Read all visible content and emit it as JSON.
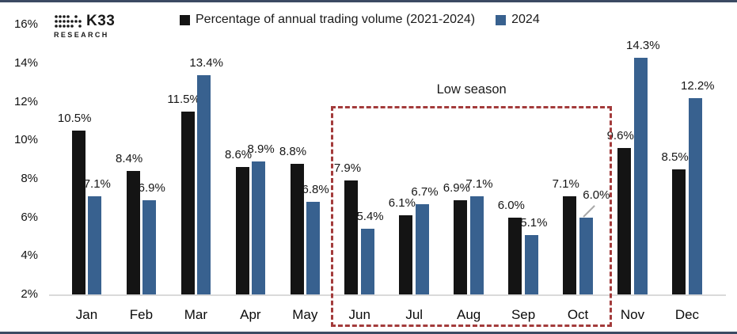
{
  "brand": {
    "name": "K33",
    "sub": "RESEARCH"
  },
  "legend": {
    "items": [
      {
        "label": "Percentage of annual trading volume (2021-2024)",
        "color": "#141414"
      },
      {
        "label": "2024",
        "color": "#38618F"
      }
    ]
  },
  "annotation": {
    "label": "Low season",
    "from": "Jun",
    "to": "Oct",
    "box_color": "#A33B3B"
  },
  "chart_data": {
    "type": "bar",
    "title": "Percentage of annual trading volume (2021-2024) vs 2024, by month",
    "categories": [
      "Jan",
      "Feb",
      "Mar",
      "Apr",
      "May",
      "Jun",
      "Jul",
      "Aug",
      "Sep",
      "Oct",
      "Nov",
      "Dec"
    ],
    "series": [
      {
        "name": "Percentage of annual trading volume (2021-2024)",
        "color": "#141414",
        "values": [
          10.5,
          8.4,
          11.5,
          8.6,
          8.8,
          7.9,
          6.1,
          6.9,
          6.0,
          7.1,
          9.6,
          8.5
        ]
      },
      {
        "name": "2024",
        "color": "#38618F",
        "values": [
          7.1,
          6.9,
          13.4,
          8.9,
          6.8,
          5.4,
          6.7,
          7.1,
          5.1,
          6.0,
          14.3,
          12.2
        ]
      }
    ],
    "ylim": [
      2,
      16
    ],
    "yticks": [
      16,
      14,
      12,
      10,
      8,
      6,
      4,
      2
    ],
    "ytick_suffix": "%",
    "value_suffix": "%",
    "value_decimals": 1,
    "grid": false,
    "legend_position": "top",
    "callout": {
      "category": "Oct",
      "series": "2024"
    }
  },
  "colors": {
    "frame_border": "#3B4A63",
    "axis_line": "#DADADA",
    "low_season": "#A33B3B"
  }
}
